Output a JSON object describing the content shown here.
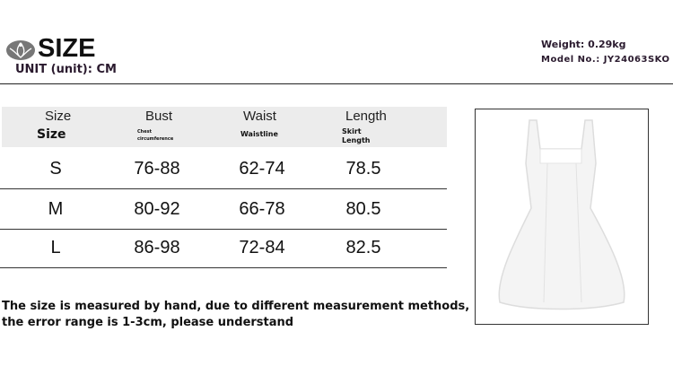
{
  "header": {
    "title": "SIZE",
    "unit": "UNIT (unit): CM",
    "weight": "Weight: 0.29kg",
    "model": "Model No.: JY24063SKO",
    "logo_icon": "lotus-logo-icon"
  },
  "table": {
    "headers": [
      {
        "main": "Size",
        "sub": "Size"
      },
      {
        "main": "Bust",
        "sub": "Chest circumference"
      },
      {
        "main": "Waist",
        "sub": "Waistline"
      },
      {
        "main": "Length",
        "sub": "Skirt Length"
      }
    ],
    "rows": [
      [
        "S",
        "76-88",
        "62-74",
        "78.5"
      ],
      [
        "M",
        "80-92",
        "66-78",
        "80.5"
      ],
      [
        "L",
        "86-98",
        "72-84",
        "82.5"
      ]
    ]
  },
  "note": [
    "The size is measured by hand, due to different measurement methods,",
    "the error range is 1-3cm, please understand"
  ],
  "product_image": "white-sleeveless-mini-dress"
}
